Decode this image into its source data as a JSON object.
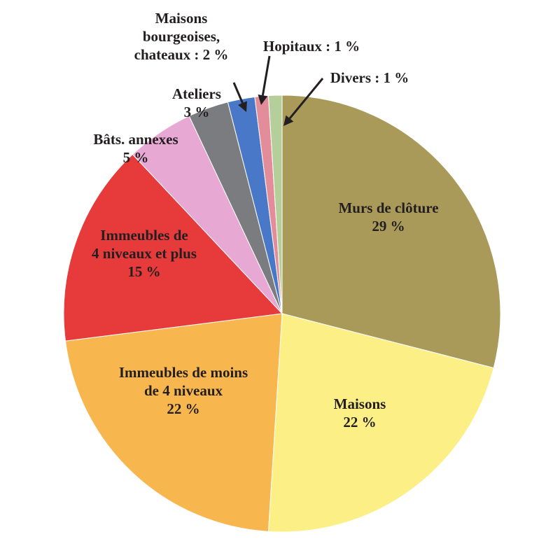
{
  "chart_data": {
    "type": "pie",
    "start_angle_deg": 0,
    "direction": "clockwise",
    "slices": [
      {
        "label_lines": [
          "Murs de clôture",
          "29 %"
        ],
        "value": 29,
        "color": "#aa9a5a"
      },
      {
        "label_lines": [
          "Maisons",
          "22 %"
        ],
        "value": 22,
        "color": "#fbef86"
      },
      {
        "label_lines": [
          "Immeubles de moins",
          "de 4 niveaux",
          "22 %"
        ],
        "value": 22,
        "color": "#f8b64f"
      },
      {
        "label_lines": [
          "Immeubles de",
          "4 niveaux et plus",
          "15 %"
        ],
        "value": 15,
        "color": "#e63a3b"
      },
      {
        "label_lines": [
          "Bâts. annexes",
          "5 %"
        ],
        "value": 5,
        "color": "#e7a8d3"
      },
      {
        "label_lines": [
          "Ateliers",
          "3 %"
        ],
        "value": 3,
        "color": "#7b7c7f"
      },
      {
        "label_lines": [
          "Maisons",
          "bourgeoises,",
          "chateaux : 2 %"
        ],
        "value": 2,
        "color": "#4a78c8",
        "callout": true
      },
      {
        "label_lines": [
          "Hopitaux : 1 %"
        ],
        "value": 1,
        "color": "#e48d9a",
        "callout": true
      },
      {
        "label_lines": [
          "Divers : 1 %"
        ],
        "value": 1,
        "color": "#b5cf9a",
        "callout": true
      }
    ]
  }
}
